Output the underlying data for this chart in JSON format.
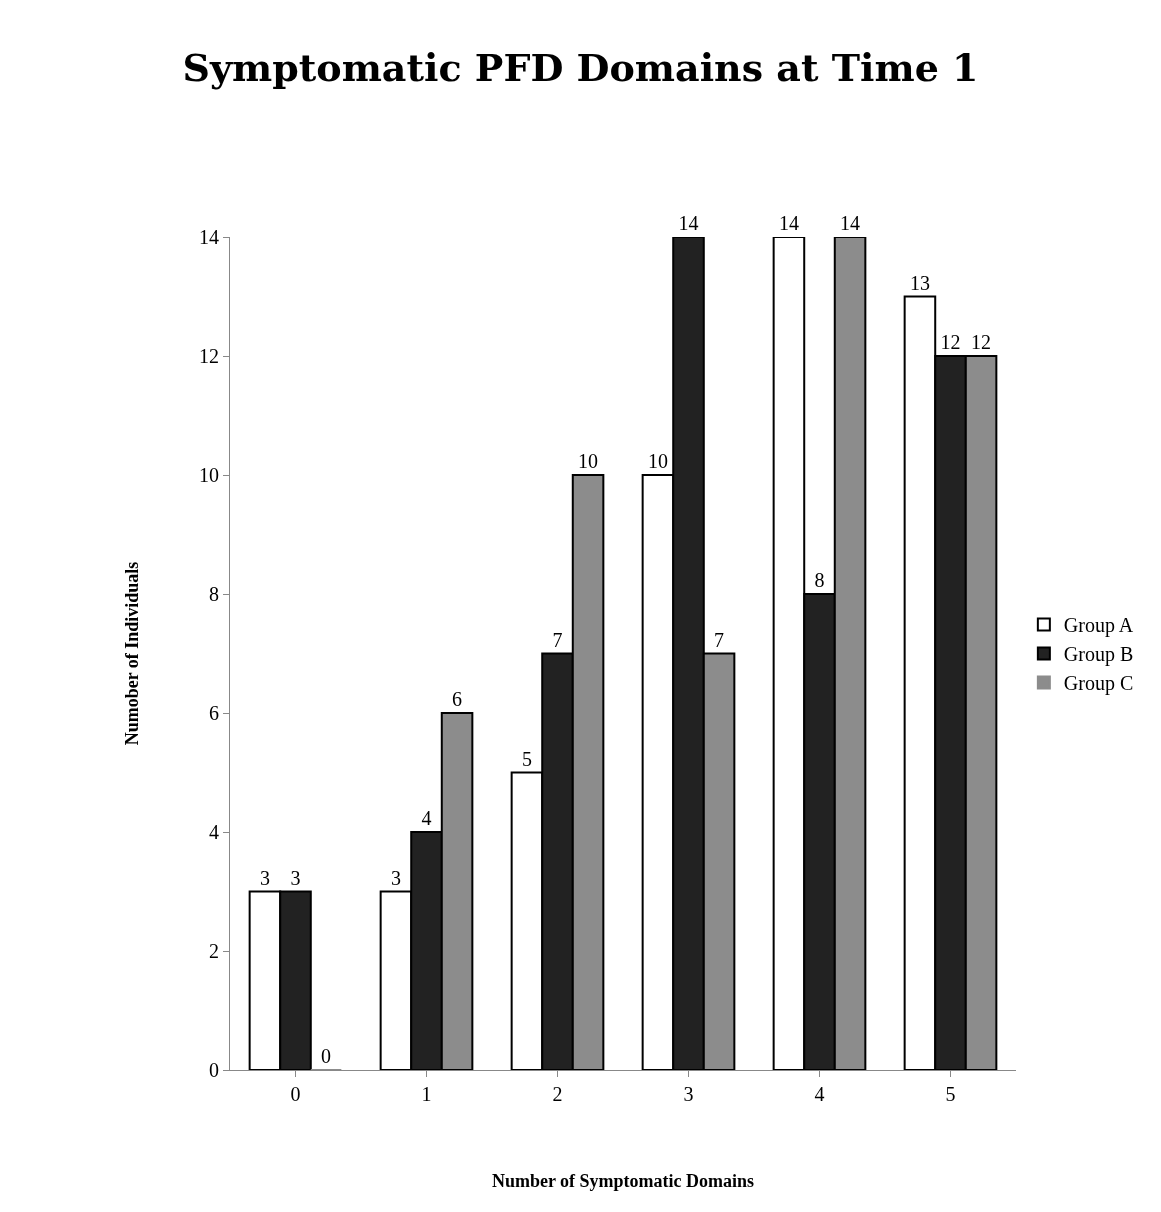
{
  "chart_data": {
    "type": "bar",
    "title": "Symptomatic PFD Domains at Time 1",
    "xlabel": "Number of Symptomatic Domains",
    "ylabel": "Numober of Individuals",
    "categories": [
      "0",
      "1",
      "2",
      "3",
      "4",
      "5"
    ],
    "series": [
      {
        "name": "Group A",
        "color": "#ffffff",
        "values": [
          3,
          3,
          5,
          10,
          14,
          13
        ]
      },
      {
        "name": "Group B",
        "color": "#222222",
        "values": [
          3,
          4,
          7,
          14,
          8,
          12
        ]
      },
      {
        "name": "Group C",
        "color": "#8c8c8c",
        "values": [
          0,
          6,
          10,
          7,
          14,
          12
        ]
      }
    ],
    "ylim": [
      0,
      14
    ],
    "yticks": [
      0,
      2,
      4,
      6,
      8,
      10,
      12,
      14
    ],
    "grid": false,
    "legend": "right",
    "data_labels": true
  }
}
